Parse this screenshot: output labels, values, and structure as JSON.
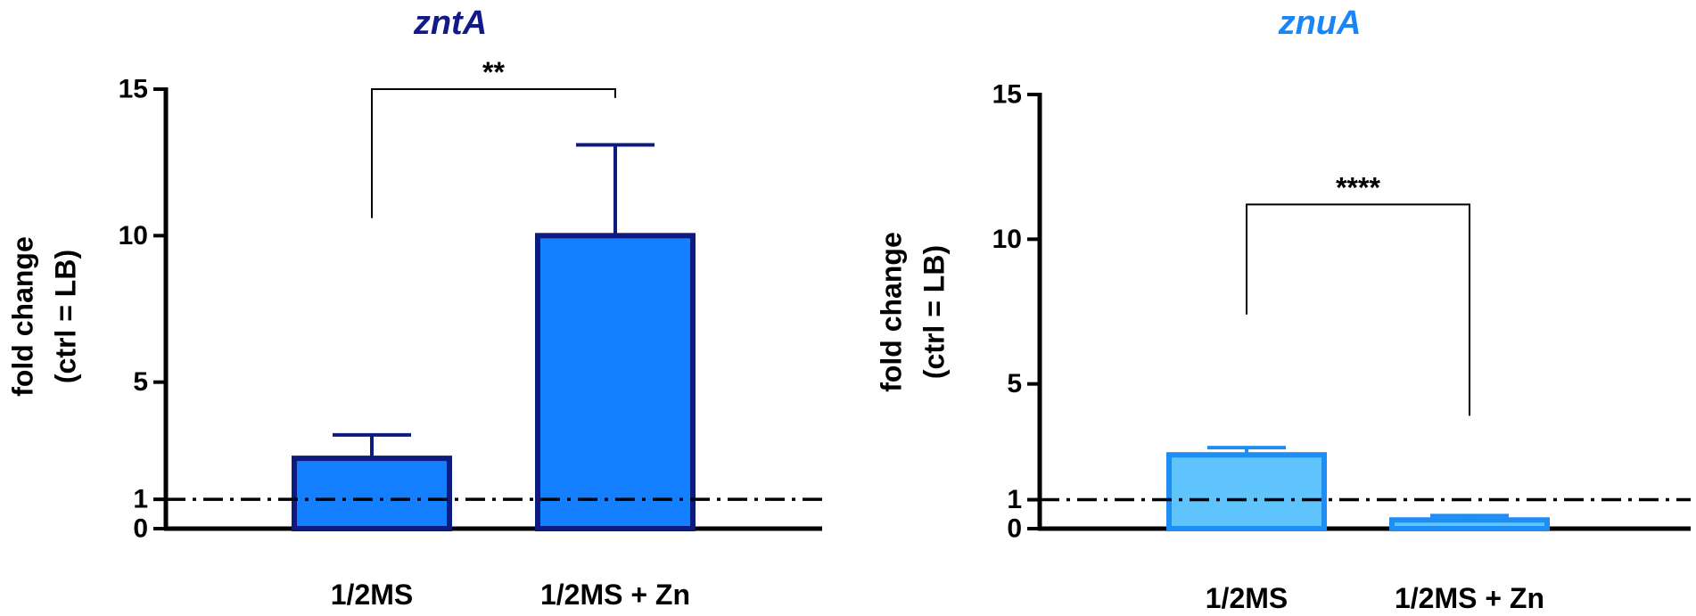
{
  "chart_data": [
    {
      "type": "bar",
      "title": "zntA",
      "title_color": "#121a8a",
      "ylabel_lines": [
        "fold change",
        "(ctrl = LB)"
      ],
      "ylim": [
        0,
        15
      ],
      "yticks": [
        0,
        1,
        5,
        10,
        15
      ],
      "categories": [
        "1/2MS",
        "1/2MS + Zn"
      ],
      "values": [
        2.4,
        10.0
      ],
      "error_upper": [
        3.2,
        13.1
      ],
      "reference_line": 1,
      "bar_fill": "#1480ff",
      "bar_stroke": "#0d1a7e",
      "error_color": "#0d1a7e",
      "significance": {
        "label": "**",
        "left_y": 10.6,
        "right_y": 14.7,
        "top_y": 15.0
      }
    },
    {
      "type": "bar",
      "title": "znuA",
      "title_color": "#1a85f5",
      "ylabel_lines": [
        "fold change",
        "(ctrl = LB)"
      ],
      "ylim": [
        0,
        15
      ],
      "yticks": [
        0,
        1,
        5,
        10,
        15
      ],
      "categories": [
        "1/2MS",
        "1/2MS + Zn"
      ],
      "values": [
        2.55,
        0.3
      ],
      "error_upper": [
        2.8,
        0.45
      ],
      "reference_line": 1,
      "bar_fill": "#5fc4fb",
      "bar_stroke": "#1e8ef5",
      "error_color": "#1e8ef5",
      "significance": {
        "label": "****",
        "left_y": 7.4,
        "right_y": 3.9,
        "top_y": 11.2
      }
    }
  ]
}
